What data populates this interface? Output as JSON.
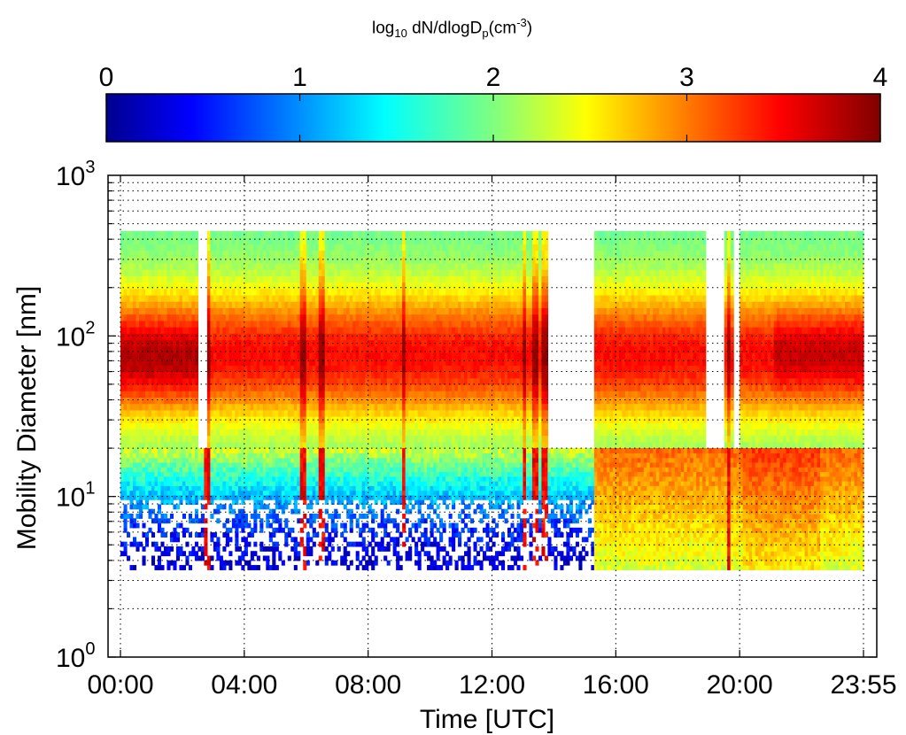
{
  "chart_data": {
    "type": "heatmap",
    "colorbar": {
      "title_base": "log",
      "title_sub": "10",
      "title_mid": " dN/dlogD",
      "title_sub2": "p",
      "title_paren": "(cm",
      "title_sup": "-3",
      "title_close": ")",
      "min": 0,
      "max": 4,
      "ticks": [
        "0",
        "1",
        "2",
        "3",
        "4"
      ],
      "colormap": "jet"
    },
    "xlabel": "Time [UTC]",
    "ylabel": "Mobility Diameter [nm]",
    "x_ticks": [
      "00:00",
      "04:00",
      "08:00",
      "12:00",
      "16:00",
      "20:00",
      "23:55"
    ],
    "x_range_hours": [
      0,
      23.92
    ],
    "y_scale": "log",
    "y_range_nm": [
      1,
      1000
    ],
    "y_tick_labels": [
      {
        "base": "10",
        "exp": "0"
      },
      {
        "base": "10",
        "exp": "1"
      },
      {
        "base": "10",
        "exp": "2"
      },
      {
        "base": "10",
        "exp": "3"
      }
    ],
    "grid": "dotted",
    "upper_instrument_range_nm": [
      20,
      450
    ],
    "lower_instrument_range_nm": [
      3.5,
      20
    ],
    "data_gaps_hours": [
      {
        "start": 2.45,
        "end": 2.75,
        "range": "upper"
      },
      {
        "start": 13.75,
        "end": 15.2,
        "range": "upper"
      },
      {
        "start": 18.75,
        "end": 19.4,
        "range": "upper"
      },
      {
        "start": 19.65,
        "end": 19.85,
        "range": "upper"
      }
    ]
  }
}
